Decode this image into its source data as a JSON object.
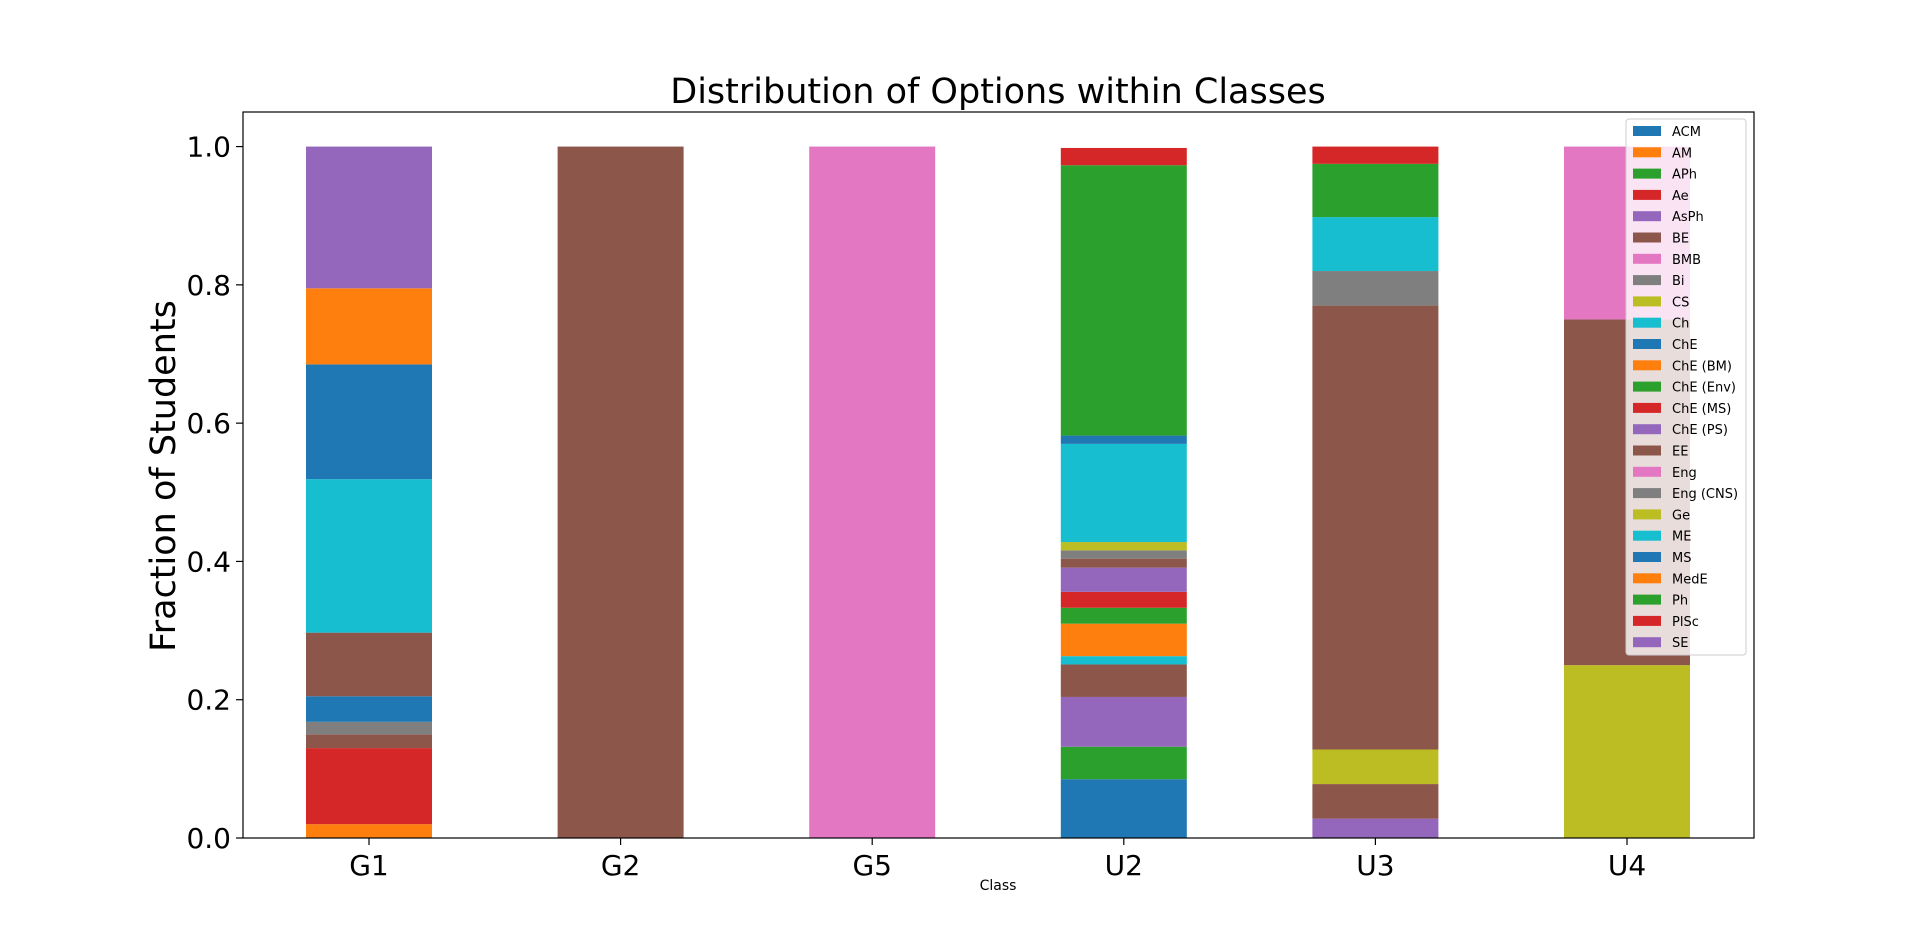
{
  "chart_data": {
    "type": "bar",
    "stacked": true,
    "title": "Distribution of Options within Classes",
    "xlabel": "Class",
    "ylabel": "Fraction of Students",
    "ylim": [
      0,
      1.05
    ],
    "yticks": [
      "0.0",
      "0.2",
      "0.4",
      "0.6",
      "0.8",
      "1.0"
    ],
    "categories": [
      "G1",
      "G2",
      "G5",
      "U2",
      "U3",
      "U4"
    ],
    "legend_position": "top-right",
    "series": [
      {
        "name": "ACM",
        "color": "#1f77b4",
        "values": [
          0,
          0,
          0,
          0.085,
          0,
          0
        ]
      },
      {
        "name": "AM",
        "color": "#ff7f0e",
        "values": [
          0.02,
          0,
          0,
          0,
          0,
          0
        ]
      },
      {
        "name": "APh",
        "color": "#2ca02c",
        "values": [
          0,
          0,
          0,
          0.047,
          0,
          0
        ]
      },
      {
        "name": "Ae",
        "color": "#d62728",
        "values": [
          0.11,
          0,
          0,
          0,
          0,
          0
        ]
      },
      {
        "name": "AsPh",
        "color": "#9467bd",
        "values": [
          0,
          0,
          0,
          0.072,
          0.028,
          0
        ]
      },
      {
        "name": "BE",
        "color": "#8c564b",
        "values": [
          0.02,
          0,
          0,
          0.047,
          0.05,
          0
        ]
      },
      {
        "name": "BMB",
        "color": "#e377c2",
        "values": [
          0,
          0,
          0,
          0,
          0,
          0
        ]
      },
      {
        "name": "Bi",
        "color": "#7f7f7f",
        "values": [
          0.018,
          0,
          0,
          0,
          0,
          0
        ]
      },
      {
        "name": "CS",
        "color": "#bcbd22",
        "values": [
          0,
          0,
          0,
          0,
          0.05,
          0.25
        ]
      },
      {
        "name": "Ch",
        "color": "#17becf",
        "values": [
          0,
          0,
          0,
          0.012,
          0,
          0
        ]
      },
      {
        "name": "ChE",
        "color": "#1f77b4",
        "values": [
          0.037,
          0,
          0,
          0,
          0,
          0
        ]
      },
      {
        "name": "ChE (BM)",
        "color": "#ff7f0e",
        "values": [
          0,
          0,
          0,
          0.047,
          0,
          0
        ]
      },
      {
        "name": "ChE (Env)",
        "color": "#2ca02c",
        "values": [
          0,
          0,
          0,
          0.023,
          0,
          0
        ]
      },
      {
        "name": "ChE (MS)",
        "color": "#d62728",
        "values": [
          0,
          0,
          0,
          0.023,
          0,
          0
        ]
      },
      {
        "name": "ChE (PS)",
        "color": "#9467bd",
        "values": [
          0,
          0,
          0,
          0.035,
          0,
          0
        ]
      },
      {
        "name": "EE",
        "color": "#8c564b",
        "values": [
          0.092,
          1.0,
          0,
          0.013,
          0.642,
          0.5
        ]
      },
      {
        "name": "Eng",
        "color": "#e377c2",
        "values": [
          0,
          0,
          1.0,
          0,
          0,
          0.25
        ]
      },
      {
        "name": "Eng (CNS)",
        "color": "#7f7f7f",
        "values": [
          0,
          0,
          0,
          0.012,
          0.05,
          0
        ]
      },
      {
        "name": "Ge",
        "color": "#bcbd22",
        "values": [
          0,
          0,
          0,
          0.012,
          0,
          0
        ]
      },
      {
        "name": "ME",
        "color": "#17becf",
        "values": [
          0.222,
          0,
          0,
          0.142,
          0.078,
          0
        ]
      },
      {
        "name": "MS",
        "color": "#1f77b4",
        "values": [
          0.166,
          0,
          0,
          0.012,
          0,
          0
        ]
      },
      {
        "name": "MedE",
        "color": "#ff7f0e",
        "values": [
          0.11,
          0,
          0,
          0,
          0,
          0
        ]
      },
      {
        "name": "Ph",
        "color": "#2ca02c",
        "values": [
          0,
          0,
          0,
          0.391,
          0.077,
          0
        ]
      },
      {
        "name": "PlSc",
        "color": "#d62728",
        "values": [
          0,
          0,
          0,
          0.025,
          0.025,
          0
        ]
      },
      {
        "name": "SE",
        "color": "#9467bd",
        "values": [
          0.205,
          0,
          0,
          0,
          0,
          0
        ]
      }
    ]
  }
}
